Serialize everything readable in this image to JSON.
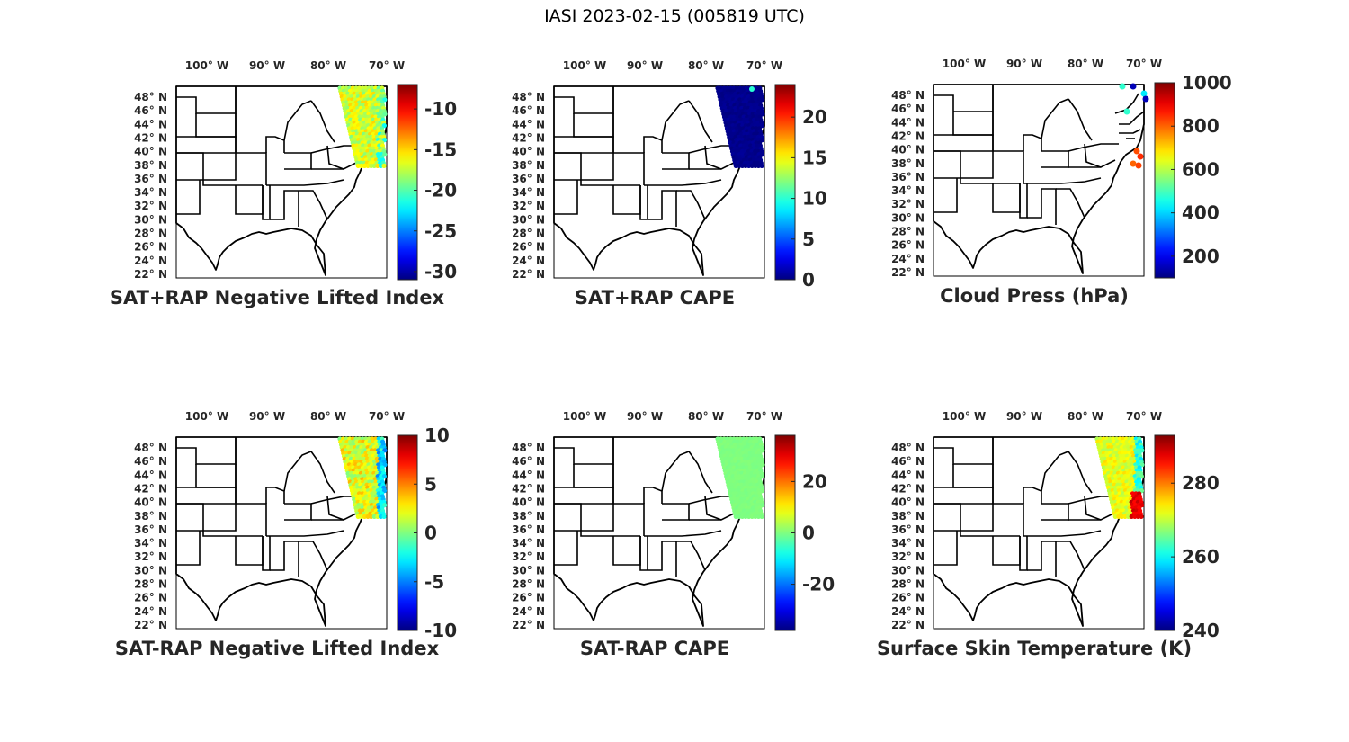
{
  "title": "IASI 2023-02-15 (005819 UTC)",
  "lon_ticks": [
    "100° W",
    "90° W",
    "80° W",
    "70° W"
  ],
  "lat_ticks": [
    "48° N",
    "46° N",
    "44° N",
    "42° N",
    "40° N",
    "38° N",
    "36° N",
    "34° N",
    "32° N",
    "30° N",
    "28° N",
    "26° N",
    "24° N",
    "22° N"
  ],
  "panels": [
    {
      "id": "sat-rap-sum-li",
      "title": "SAT+RAP Negative Lifted Index",
      "colorbar": {
        "min": -31,
        "max": -7,
        "ticks": [
          -30,
          -25,
          -20,
          -15,
          -10
        ]
      },
      "swath": {
        "mean": -17,
        "spread": 2,
        "east": -19,
        "east_spread": 3
      }
    },
    {
      "id": "sat-rap-sum-cape",
      "title": "SAT+RAP CAPE",
      "colorbar": {
        "min": 0,
        "max": 24,
        "ticks": [
          0,
          5,
          10,
          15,
          20
        ]
      },
      "swath": {
        "mean": 0.3,
        "spread": 0.3,
        "east": 0.3,
        "east_spread": 0.3,
        "extras": [
          10
        ]
      }
    },
    {
      "id": "cloud-press",
      "title": "Cloud Press (hPa)",
      "colorbar": {
        "min": 100,
        "max": 1000,
        "ticks": [
          200,
          400,
          600,
          800,
          1000
        ]
      },
      "sparse": [
        480,
        150,
        420,
        480,
        150,
        820,
        850,
        800,
        830
      ]
    },
    {
      "id": "sat-rap-diff-li",
      "title": "SAT-RAP Negative Lifted Index",
      "colorbar": {
        "min": -10,
        "max": 10,
        "ticks": [
          -10,
          -5,
          0,
          5,
          10
        ]
      },
      "swath": {
        "mean": 2,
        "spread": 2,
        "east": -3,
        "east_spread": 2
      }
    },
    {
      "id": "sat-rap-diff-cape",
      "title": "SAT-RAP CAPE",
      "colorbar": {
        "min": -38,
        "max": 38,
        "ticks": [
          -20,
          0,
          20
        ]
      },
      "swath": {
        "mean": 0,
        "spread": 0.5,
        "east": 0,
        "east_spread": 0.5
      }
    },
    {
      "id": "skin-temp",
      "title": "Surface Skin Temperature (K)",
      "colorbar": {
        "min": 240,
        "max": 293,
        "ticks": [
          240,
          260,
          280
        ]
      },
      "swath": {
        "mean": 272,
        "spread": 3,
        "east": 262,
        "east_spread": 4,
        "southeast": 288
      }
    }
  ]
}
